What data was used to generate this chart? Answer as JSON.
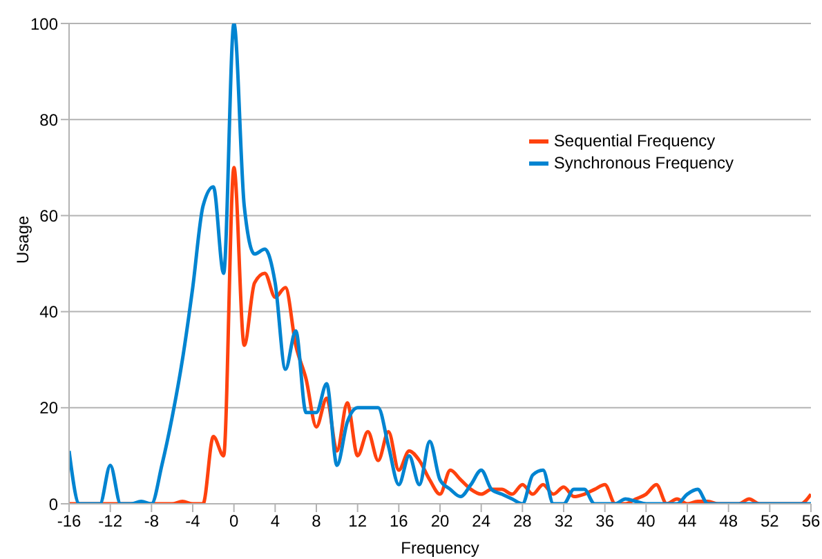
{
  "chart_data": {
    "type": "line",
    "xlabel": "Frequency",
    "ylabel": "Usage",
    "x": [
      -16,
      -15,
      -14,
      -13,
      -12,
      -11,
      -10,
      -9,
      -8,
      -7,
      -6,
      -5,
      -4,
      -3,
      -2,
      -1,
      0,
      1,
      2,
      3,
      4,
      5,
      6,
      7,
      8,
      9,
      10,
      11,
      12,
      13,
      14,
      15,
      16,
      17,
      18,
      19,
      20,
      21,
      22,
      23,
      24,
      25,
      26,
      27,
      28,
      29,
      30,
      31,
      32,
      33,
      34,
      35,
      36,
      37,
      38,
      39,
      40,
      41,
      42,
      43,
      44,
      45,
      46,
      47,
      48,
      49,
      50,
      51,
      52,
      53,
      54,
      55,
      56
    ],
    "series": [
      {
        "name": "Sequential Frequency",
        "color": "#ff420e",
        "values": [
          0,
          0,
          0,
          0,
          0,
          0,
          0,
          0,
          0,
          0,
          0,
          0.5,
          0,
          0,
          14,
          10,
          70,
          33,
          46,
          48,
          43,
          45,
          33,
          26,
          16,
          22,
          11,
          21,
          10,
          15,
          9,
          15,
          7,
          11,
          9,
          5,
          2,
          7,
          5,
          3,
          2,
          3,
          3,
          2,
          4,
          2,
          4,
          2,
          3.5,
          1.5,
          2,
          3,
          4,
          0,
          0,
          1,
          2,
          4,
          0,
          1,
          0,
          0.5,
          0.5,
          0,
          0,
          0,
          1,
          0,
          0,
          0,
          0,
          0,
          2
        ]
      },
      {
        "name": "Synchronous Frequency",
        "color": "#0084d1",
        "values": [
          11,
          0,
          0,
          0,
          8,
          0,
          0,
          0.5,
          0,
          8,
          18,
          30,
          45,
          62,
          66,
          48,
          100,
          62,
          52,
          53,
          46,
          28,
          36,
          19,
          19,
          25,
          8,
          17,
          20,
          20,
          20,
          12,
          4,
          10,
          4,
          13,
          5,
          3,
          1.5,
          4,
          7,
          3,
          2,
          1,
          0,
          6,
          7,
          0,
          0,
          3,
          3,
          0,
          0,
          0,
          1,
          0.5,
          0,
          0,
          0,
          0,
          2,
          3,
          0,
          0,
          0,
          0,
          0,
          0,
          0,
          0,
          0,
          0,
          0
        ]
      }
    ],
    "xlim": [
      -16,
      56
    ],
    "xticks": [
      -16,
      -12,
      -8,
      -4,
      0,
      4,
      8,
      12,
      16,
      20,
      24,
      28,
      32,
      36,
      40,
      44,
      48,
      52,
      56
    ],
    "ylim": [
      0,
      100
    ],
    "yticks": [
      0,
      20,
      40,
      60,
      80,
      100
    ],
    "grid": "y",
    "legend": "top right",
    "marker": "none",
    "line_style": "solid"
  }
}
